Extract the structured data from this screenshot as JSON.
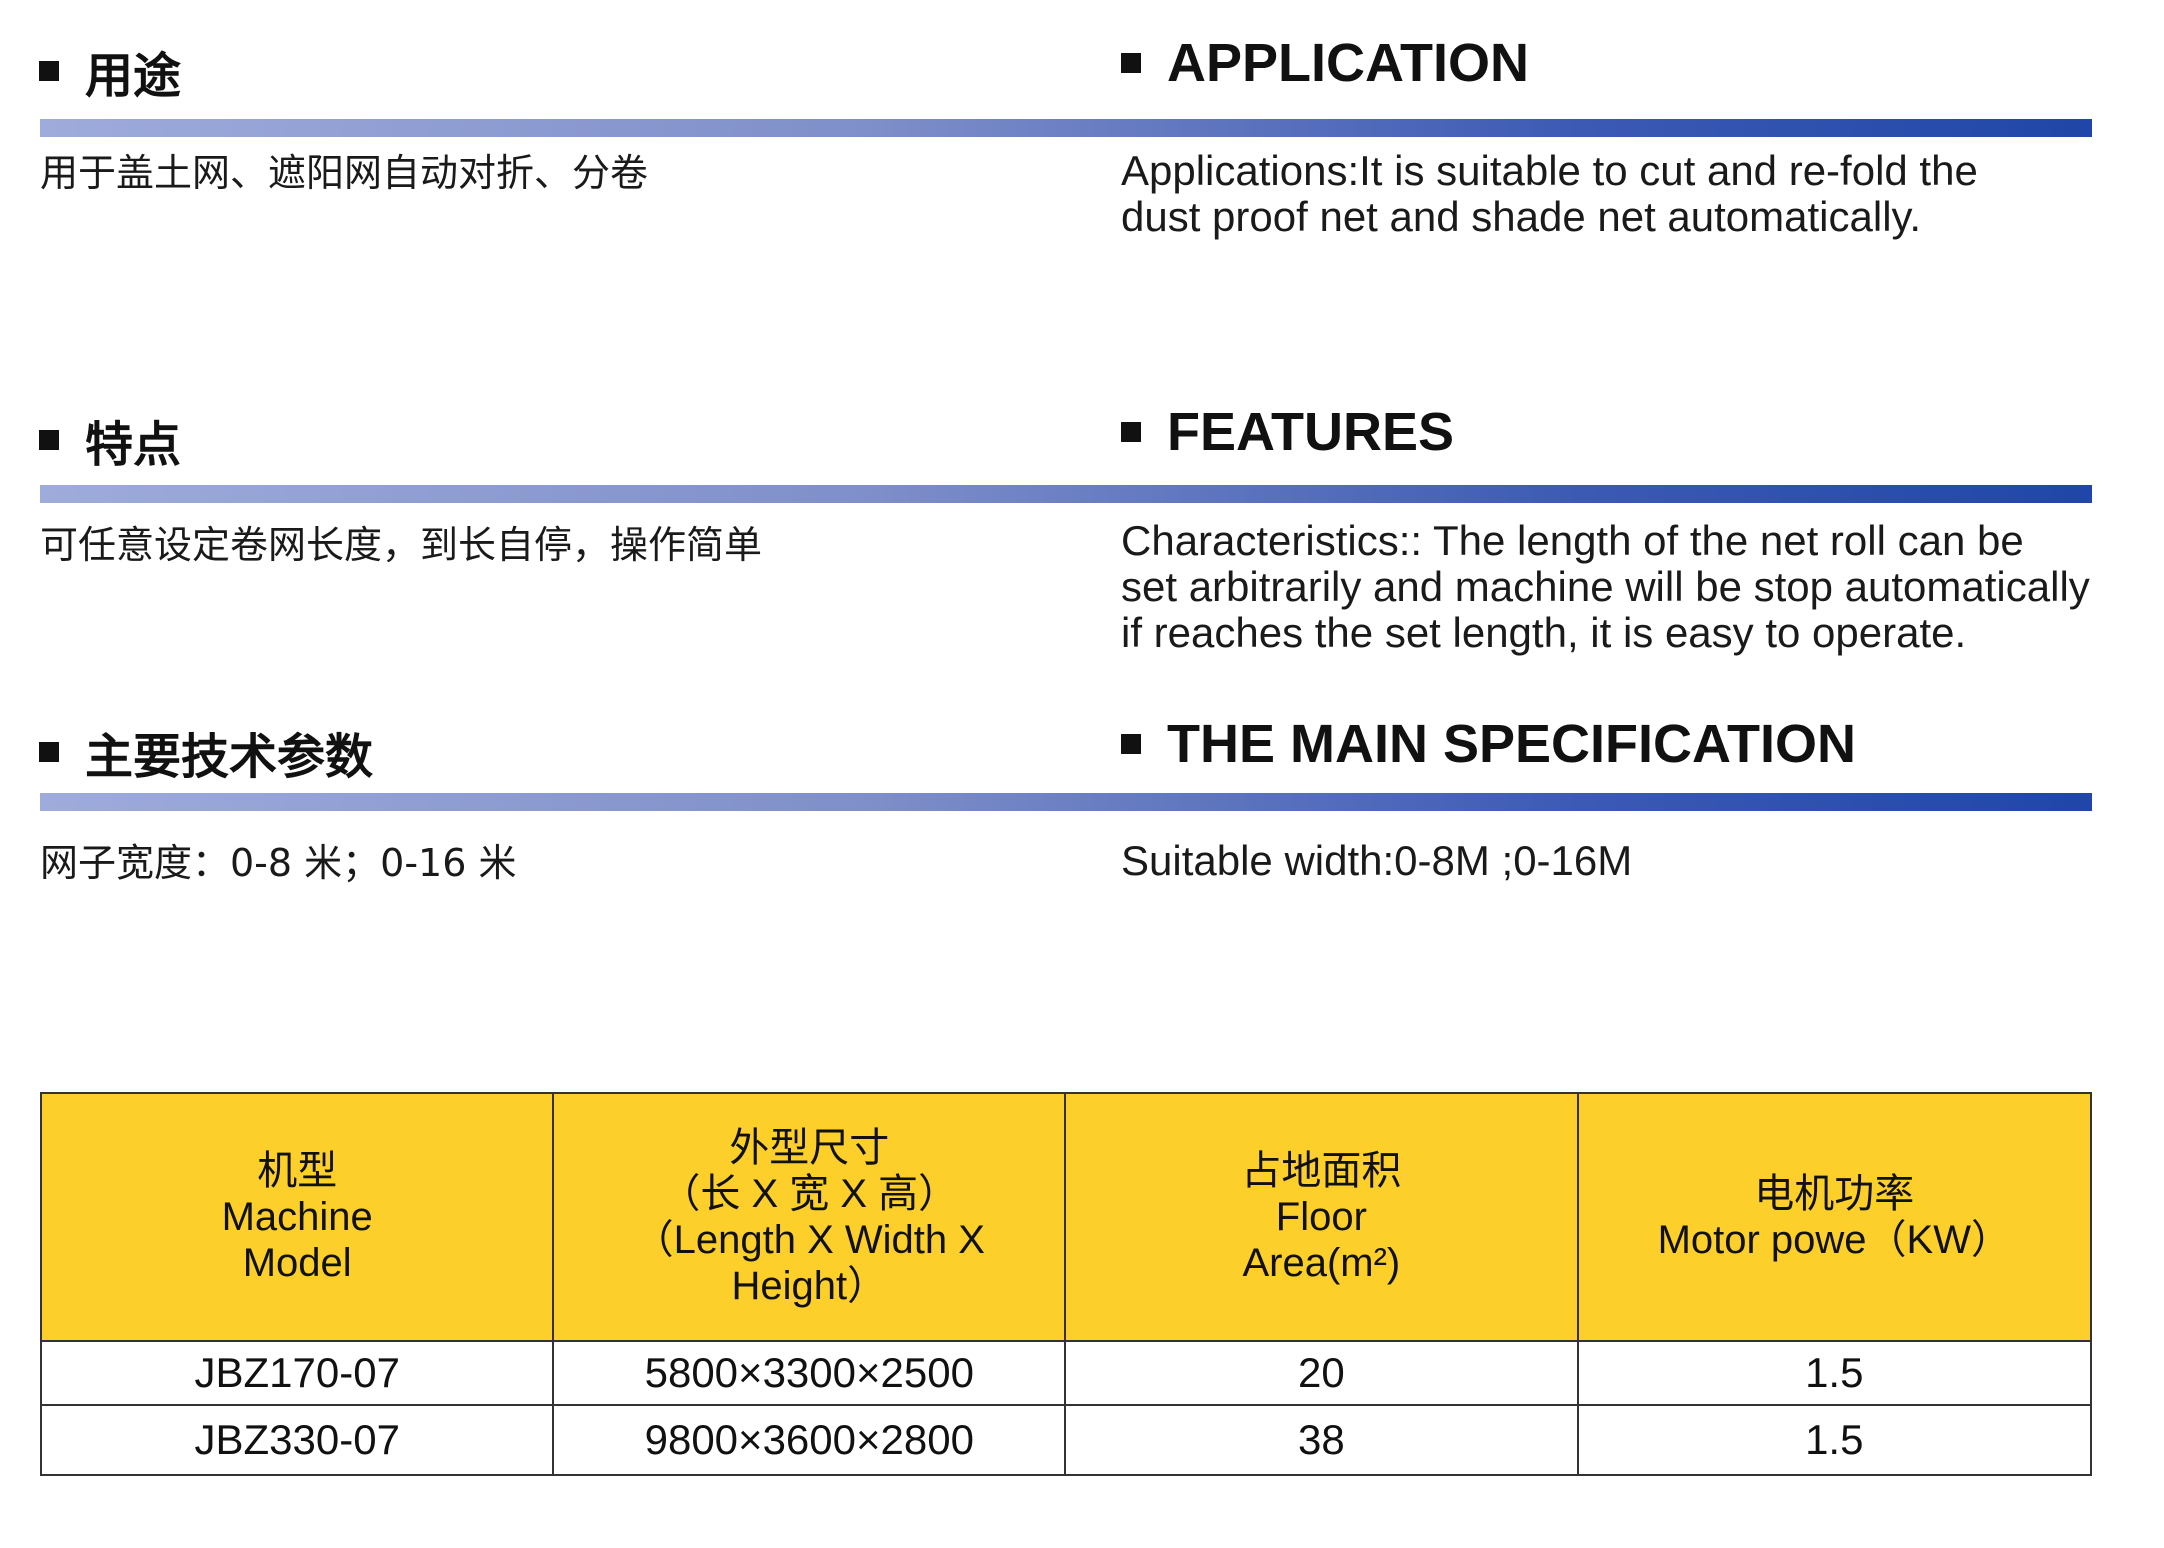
{
  "sections": [
    {
      "cn_title": "用途",
      "en_title": "APPLICATION",
      "cn_body": [
        "用于盖土网、遮阳网自动对折、分卷"
      ],
      "en_body": [
        "Applications:It is suitable to cut and re-fold the",
        "dust proof net and shade net automatically."
      ]
    },
    {
      "cn_title": "特点",
      "en_title": "FEATURES",
      "cn_body": [
        "可任意设定卷网长度，到长自停，操作简单"
      ],
      "en_body": [
        "Characteristics:: The length of the net roll can be",
        "set arbitrarily and machine will be stop automatically",
        "if reaches the set length, it is easy to operate."
      ]
    },
    {
      "cn_title": "主要技术参数",
      "en_title": "THE MAIN SPECIFICATION",
      "cn_body": [
        "网子宽度：0-8 米；0-16 米"
      ],
      "en_body": [
        "Suitable width:0-8M ;0-16M"
      ]
    }
  ],
  "table": {
    "headers": [
      [
        "机型",
        "Machine",
        "Model"
      ],
      [
        "外型尺寸",
        "（长 X 宽 X 高）",
        "（Length X Width X",
        "Height）"
      ],
      [
        "占地面积",
        "Floor",
        "Area(m²)"
      ],
      [
        "电机功率",
        "Motor powe（KW）"
      ]
    ],
    "rows": [
      [
        "JBZ170-07",
        "5800×3300×2500",
        "20",
        "1.5"
      ],
      [
        "JBZ330-07",
        "9800×3600×2800",
        "38",
        "1.5"
      ]
    ]
  },
  "colors": {
    "header_fill": "#fccf2a",
    "bar_start": "#9eabdb",
    "bar_end": "#1f46a8"
  }
}
